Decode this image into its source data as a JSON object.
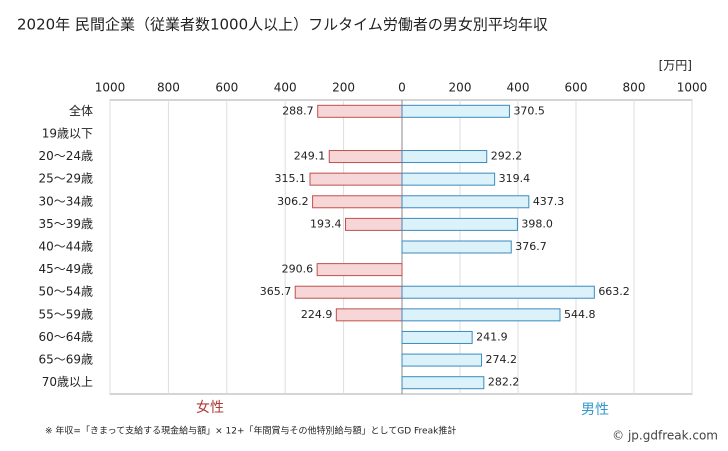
{
  "chart_data": {
    "type": "butterfly-bar",
    "title": "2020年 民間企業（従業者数1000人以上）フルタイム労働者の男女別平均年収",
    "unit_label": "[万円]",
    "categories": [
      "全体",
      "19歳以下",
      "20〜24歳",
      "25〜29歳",
      "30〜34歳",
      "35〜39歳",
      "40〜44歳",
      "45〜49歳",
      "50〜54歳",
      "55〜59歳",
      "60〜64歳",
      "65〜69歳",
      "70歳以上"
    ],
    "left_xlim": [
      1000,
      0
    ],
    "left_xticks": [
      1000,
      800,
      600,
      400,
      200,
      0
    ],
    "right_xlim": [
      0,
      1000
    ],
    "right_xticks": [
      200,
      400,
      600,
      800,
      1000
    ],
    "grid": true,
    "series": [
      {
        "name": "女性",
        "side": "left",
        "color": "#f6d6d6",
        "edge_color": "#c0504d",
        "values": [
          288.7,
          null,
          249.1,
          315.1,
          306.2,
          193.4,
          null,
          290.6,
          365.7,
          224.9,
          null,
          null,
          null
        ],
        "value_labels": [
          "288.7",
          null,
          "249.1",
          "315.1",
          "306.2",
          "193.4",
          null,
          "290.6",
          "365.7",
          "224.9",
          null,
          null,
          null
        ]
      },
      {
        "name": "男性",
        "side": "right",
        "color": "#dcf2fa",
        "edge_color": "#3b8bbf",
        "values": [
          370.5,
          null,
          292.2,
          319.4,
          437.3,
          398.0,
          376.7,
          null,
          663.2,
          544.8,
          241.9,
          274.2,
          282.2
        ],
        "value_labels": [
          "370.5",
          null,
          "292.2",
          "319.4",
          "437.3",
          "398.0",
          "376.7",
          null,
          "663.2",
          "544.8",
          "241.9",
          "274.2",
          "282.2"
        ]
      }
    ],
    "footnote": "※ 年収=「きまって支給する現金給与額」× 12+「年間賞与その他特別給与額」としてGD Freak推計",
    "credit": "© jp.gdfreak.com"
  }
}
